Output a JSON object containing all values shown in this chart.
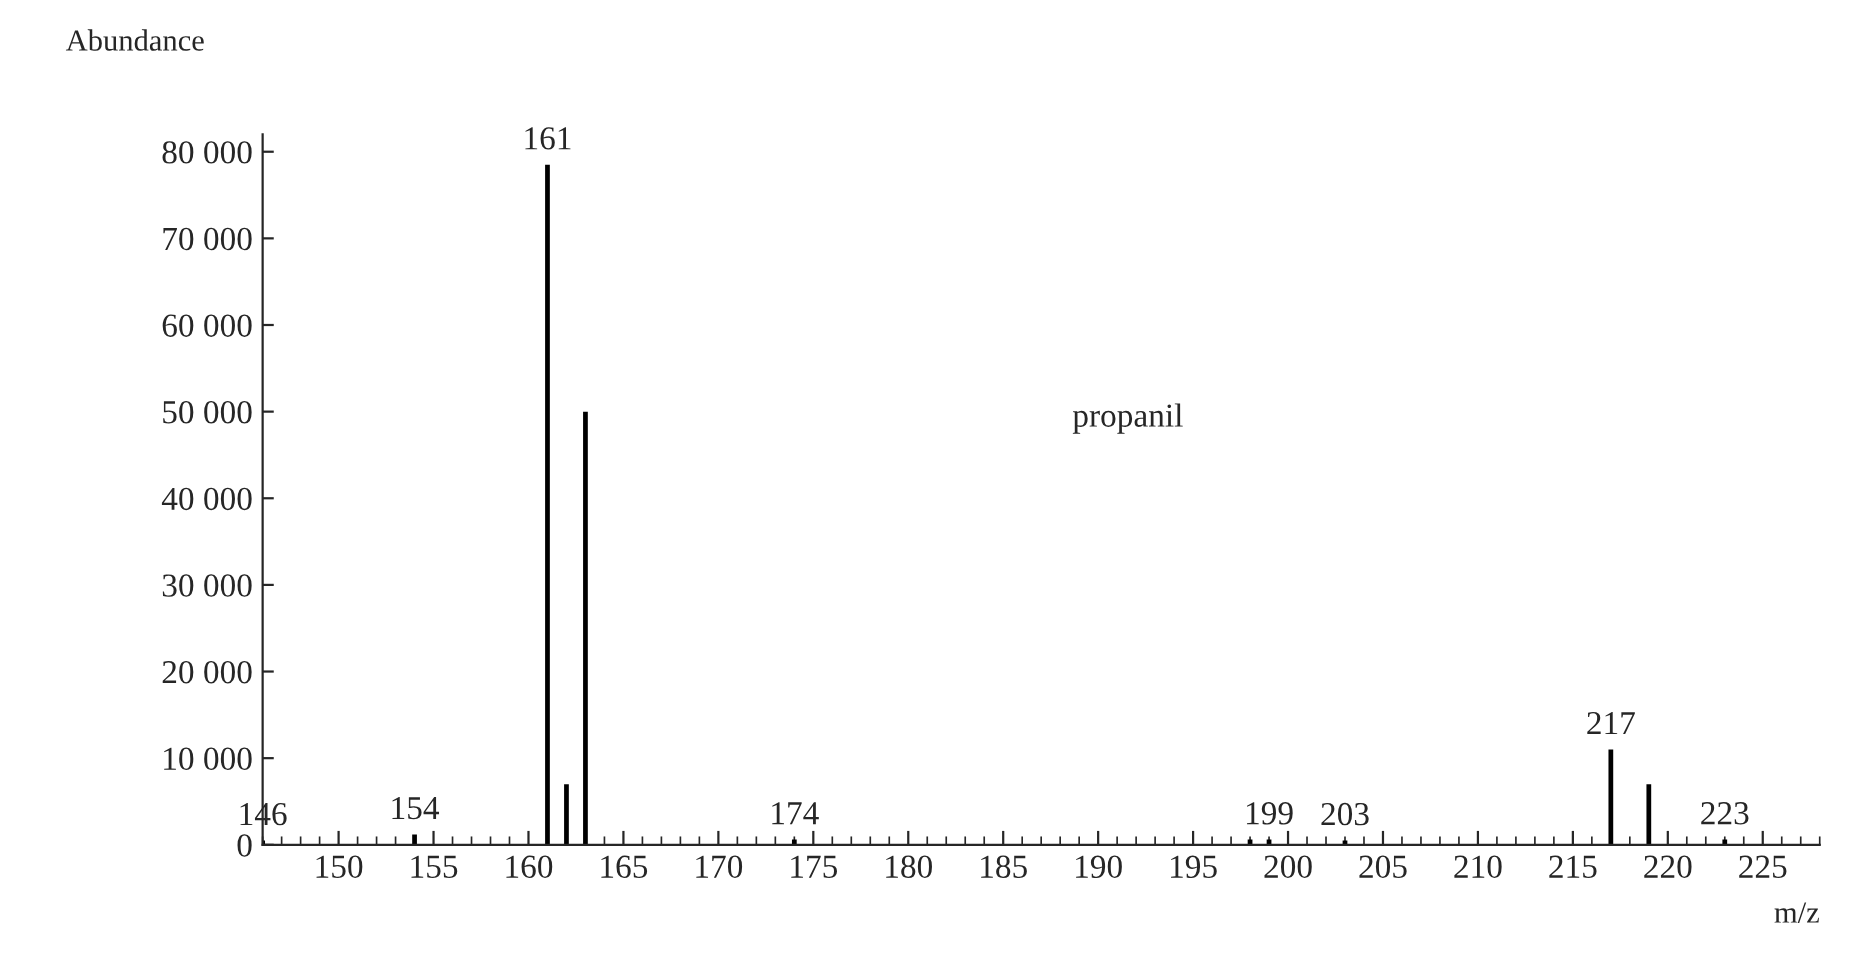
{
  "chart_data": {
    "type": "bar",
    "xlabel": "m/z",
    "ylabel": "Abundance",
    "x": [
      146,
      154,
      161,
      162,
      163,
      174,
      198,
      199,
      203,
      217,
      219,
      223
    ],
    "values": [
      500,
      1200,
      78500,
      7000,
      50000,
      600,
      600,
      600,
      500,
      11000,
      7000,
      600
    ],
    "color": "#000000",
    "xlim": [
      146,
      228
    ],
    "ylim": [
      0,
      82000
    ],
    "xticks": [
      150,
      155,
      160,
      165,
      170,
      175,
      180,
      185,
      190,
      195,
      200,
      205,
      210,
      215,
      220,
      225
    ],
    "yticks": [
      0,
      {
        "value": 10000,
        "label": "10 000"
      },
      {
        "value": 20000,
        "label": "20 000"
      },
      {
        "value": 30000,
        "label": "30 000"
      },
      {
        "value": 40000,
        "label": "40 000"
      },
      {
        "value": 50000,
        "label": "50 000"
      },
      {
        "value": 60000,
        "label": "60 000"
      },
      {
        "value": 70000,
        "label": "70 000"
      },
      {
        "value": 80000,
        "label": "80 000"
      }
    ],
    "grid": false,
    "annotations": [
      {
        "text": "146",
        "x": 146,
        "y": 500
      },
      {
        "text": "154",
        "x": 154,
        "y": 1200
      },
      {
        "text": "161",
        "x": 161,
        "y": 78500
      },
      {
        "text": "174",
        "x": 174,
        "y": 600
      },
      {
        "text": "199",
        "x": 199,
        "y": 600
      },
      {
        "text": "203",
        "x": 203,
        "y": 500
      },
      {
        "text": "217",
        "x": 217,
        "y": 11000
      },
      {
        "text": "223",
        "x": 223,
        "y": 600
      },
      "propanil"
    ]
  }
}
